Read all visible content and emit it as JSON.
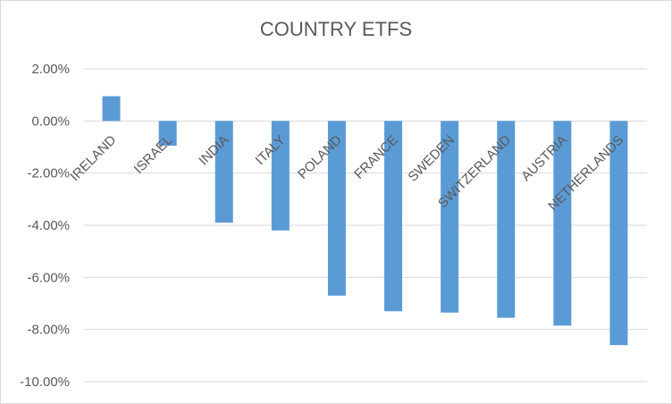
{
  "chart_data": {
    "type": "bar",
    "title": "COUNTRY ETFS",
    "xlabel": "",
    "ylabel": "",
    "categories": [
      "IRELAND",
      "ISRAEL",
      "INDIA",
      "ITALY",
      "POLAND",
      "FRANCE",
      "SWEDEN",
      "SWITZERLAND",
      "AUSTRIA",
      "NETHERLANDS"
    ],
    "values": [
      0.95,
      -0.95,
      -3.9,
      -4.2,
      -6.7,
      -7.3,
      -7.35,
      -7.55,
      -7.85,
      -8.6
    ],
    "ylim": [
      -10,
      2
    ],
    "yticks": [
      2,
      0,
      -2,
      -4,
      -6,
      -8,
      -10
    ],
    "ytick_labels": [
      "2.00%",
      "0.00%",
      "-2.00%",
      "-4.00%",
      "-6.00%",
      "-8.00%",
      "-10.00%"
    ],
    "bar_color": "#5b9bd5",
    "grid": true,
    "gridline_color": "#d9d9d9",
    "legend": "none"
  }
}
